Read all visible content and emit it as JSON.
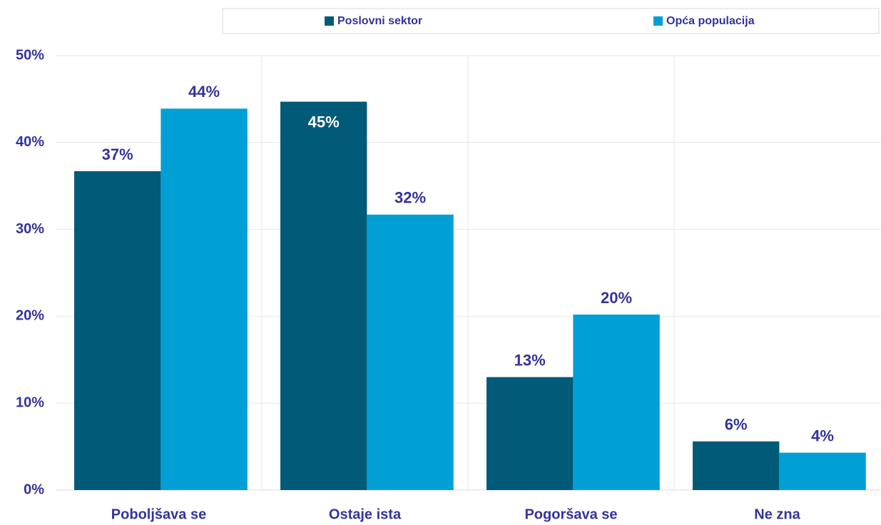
{
  "chart_data": {
    "type": "bar",
    "categories": [
      "Poboljšava se",
      "Ostaje ista",
      "Pogoršava se",
      "Ne zna"
    ],
    "series": [
      {
        "name": "Poslovni sektor",
        "color": "#005a78",
        "values": [
          36.7,
          44.7,
          13.0,
          5.6
        ],
        "value_labels": [
          "37%",
          "45%",
          "13%",
          "6%"
        ]
      },
      {
        "name": "Opća populacija",
        "color": "#009fd6",
        "values": [
          43.9,
          31.7,
          20.2,
          4.3
        ],
        "value_labels": [
          "44%",
          "32%",
          "20%",
          "4%"
        ]
      }
    ],
    "ylim": [
      0,
      50
    ],
    "yticks": [
      {
        "value": 0,
        "label": "0%"
      },
      {
        "value": 10,
        "label": "10%"
      },
      {
        "value": 20,
        "label": "20%"
      },
      {
        "value": 30,
        "label": "30%"
      },
      {
        "value": 40,
        "label": "40%"
      },
      {
        "value": 50,
        "label": "50%"
      }
    ],
    "grid": true,
    "legend": "top"
  }
}
